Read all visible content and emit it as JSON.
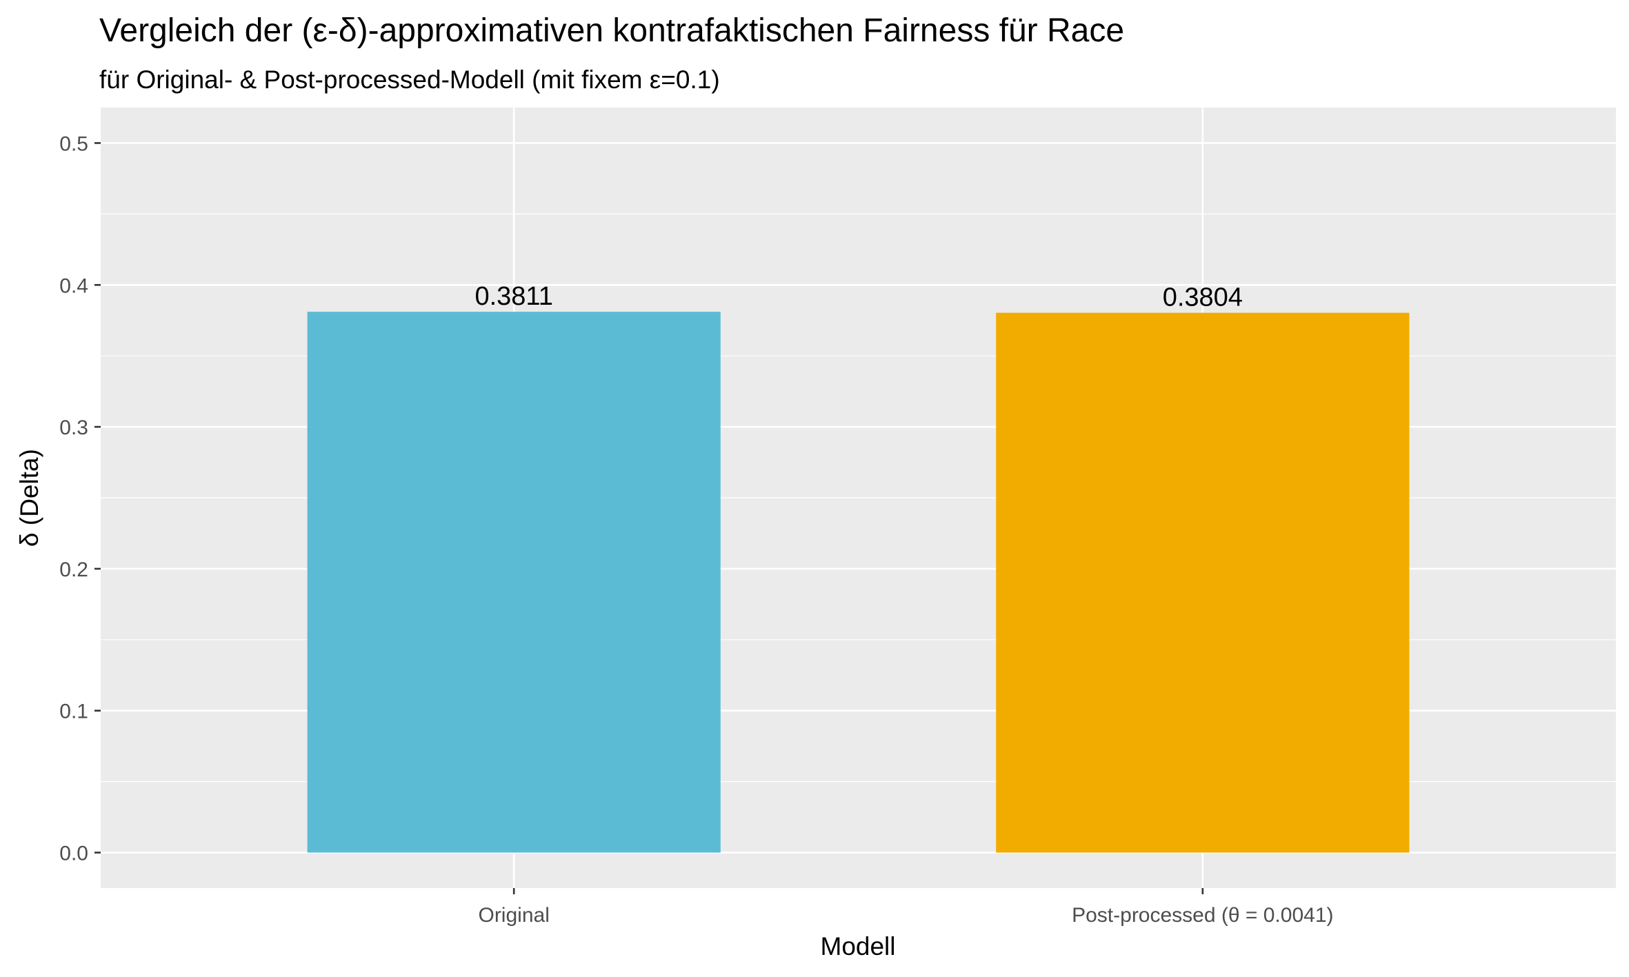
{
  "chart_data": {
    "type": "bar",
    "title": "Vergleich der (ε-δ)-approximativen kontrafaktischen Fairness für Race",
    "subtitle": "für Original- & Post-processed-Modell (mit fixem ε=0.1)",
    "xlabel": "Modell",
    "ylabel": "δ (Delta)",
    "categories": [
      "Original",
      "Post-processed (θ = 0.0041)"
    ],
    "values": [
      0.3811,
      0.3804
    ],
    "data_labels": [
      "0.3811",
      "0.3804"
    ],
    "bar_colors": [
      "#5bbbd4",
      "#f2ac00"
    ],
    "ylim": [
      -0.025,
      0.525
    ],
    "y_ticks": [
      0.0,
      0.1,
      0.2,
      0.3,
      0.4,
      0.5
    ],
    "y_tick_labels": [
      "0.0",
      "0.1",
      "0.2",
      "0.3",
      "0.4",
      "0.5"
    ],
    "grid": true,
    "legend": "none",
    "panel_background": "#ebebeb",
    "grid_color": "#ffffff"
  }
}
